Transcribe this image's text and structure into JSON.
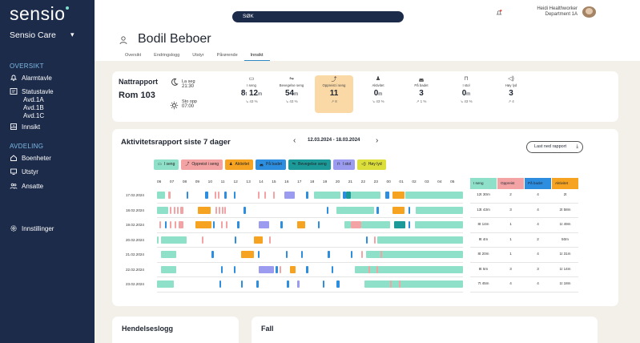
{
  "app": {
    "logo": "sensio",
    "org": "Sensio Care"
  },
  "sidebar": {
    "sections": [
      {
        "title": "OVERSIKT",
        "items": [
          {
            "label": "Alarmtavle",
            "icon": "alarm-bell-icon"
          },
          {
            "label": "Statustavle",
            "icon": "status-board-icon"
          },
          {
            "label": "Avd.1A",
            "sub": true
          },
          {
            "label": "Avd.1B",
            "sub": true
          },
          {
            "label": "Avd.1C",
            "sub": true
          },
          {
            "label": "Innsikt",
            "icon": "insight-icon"
          }
        ]
      },
      {
        "title": "AVDELING",
        "items": [
          {
            "label": "Boenheter",
            "icon": "housing-icon"
          },
          {
            "label": "Utstyr",
            "icon": "equipment-icon"
          },
          {
            "label": "Ansatte",
            "icon": "staff-icon"
          }
        ]
      }
    ],
    "settings": "Innstillinger"
  },
  "topbar": {
    "search_label": "SØK",
    "user_name": "Heidi Healthworker",
    "user_dept": "Department 1A"
  },
  "resident": {
    "name": "Bodil Beboer"
  },
  "tabs": [
    "Oversikt",
    "Endringslogg",
    "Utstyr",
    "Pårørende",
    "Innsikt"
  ],
  "active_tab": "Innsikt",
  "night_report": {
    "title": "Nattrapport",
    "room": "Rom 103",
    "lie_down_label": "La seg",
    "lie_down_time": "21:30",
    "got_up_label": "Sto opp",
    "got_up_time": "07:00",
    "metrics": [
      {
        "label": "I seng",
        "value": "8",
        "unit": "t",
        "value2": "12",
        "unit2": "m",
        "pct": "↘ 43 %",
        "icon": "bed-icon"
      },
      {
        "label": "Bevegelse seng",
        "value": "54",
        "unit": "m",
        "pct": "↘ 43 %",
        "icon": "bed-move-icon"
      },
      {
        "label": "Oppreist i seng",
        "value": "11",
        "unit": "",
        "pct": "↗ 8",
        "icon": "sit-up-icon",
        "highlight": true
      },
      {
        "label": "Aktivitet",
        "value": "0",
        "unit": "m",
        "pct": "↘ 43 %",
        "icon": "walk-icon"
      },
      {
        "label": "På badet",
        "value": "3",
        "unit": "",
        "pct": "↗ 1 %",
        "icon": "bath-icon"
      },
      {
        "label": "I stol",
        "value": "0",
        "unit": "m",
        "pct": "↘ 43 %",
        "icon": "chair-icon"
      },
      {
        "label": "Høy lyd",
        "value": "3",
        "unit": "",
        "pct": "↗ 4",
        "icon": "sound-icon"
      }
    ]
  },
  "activity": {
    "title": "Aktivitetsrapport siste 7 dager",
    "range": "12.03.2024 - 18.03.2024",
    "download_label": "Last ned rapport",
    "legend": [
      {
        "label": "I seng",
        "color": "#8fe0c8",
        "icon": "bed-icon"
      },
      {
        "label": "Oppreist i seng",
        "color": "#f3a3a3",
        "icon": "sit-up-icon"
      },
      {
        "label": "Aktivitet",
        "color": "#f5a321",
        "icon": "walk-icon"
      },
      {
        "label": "På badet",
        "color": "#2d8ee0",
        "icon": "bath-icon"
      },
      {
        "label": "Bevegelse seng",
        "color": "#1c9a9a",
        "icon": "bed-move-icon"
      },
      {
        "label": "I stol",
        "color": "#9b9cf0",
        "icon": "chair-icon"
      },
      {
        "label": "Høy lyd",
        "color": "#dcde3b",
        "icon": "sound-icon"
      }
    ],
    "hours": [
      "06",
      "07",
      "08",
      "09",
      "10",
      "11",
      "12",
      "13",
      "14",
      "15",
      "16",
      "17",
      "18",
      "19",
      "20",
      "21",
      "22",
      "23",
      "00",
      "01",
      "02",
      "03",
      "04",
      "05"
    ],
    "days": [
      {
        "date": "17.02.2024",
        "segments": [
          [
            0,
            0.6,
            "bed"
          ],
          [
            0.9,
            1.05,
            "up"
          ],
          [
            2.3,
            2.45,
            "bath"
          ],
          [
            3.8,
            4.0,
            "bath"
          ],
          [
            4.5,
            4.6,
            "up"
          ],
          [
            4.75,
            4.85,
            "up"
          ],
          [
            5.3,
            5.45,
            "bath"
          ],
          [
            6.0,
            6.15,
            "bath"
          ],
          [
            7.9,
            8.0,
            "up"
          ],
          [
            8.4,
            8.5,
            "up"
          ],
          [
            9.1,
            9.25,
            "up"
          ],
          [
            10.0,
            10.8,
            "chair"
          ],
          [
            11.7,
            11.85,
            "bath"
          ],
          [
            12.3,
            14.4,
            "bed"
          ],
          [
            14.6,
            14.8,
            "bath"
          ],
          [
            14.8,
            15.2,
            "bedmove"
          ],
          [
            15.2,
            17.5,
            "bed"
          ],
          [
            17.9,
            18.2,
            "bath"
          ],
          [
            18.5,
            19.4,
            "act"
          ],
          [
            19.5,
            24,
            "bed"
          ]
        ]
      },
      {
        "date": "18.02.2024",
        "segments": [
          [
            0,
            0.9,
            "bed"
          ],
          [
            1.0,
            1.05,
            "up"
          ],
          [
            1.3,
            1.35,
            "up"
          ],
          [
            1.55,
            1.6,
            "up"
          ],
          [
            1.85,
            2.05,
            "up"
          ],
          [
            3.2,
            4.2,
            "act"
          ],
          [
            4.6,
            4.65,
            "up"
          ],
          [
            4.85,
            4.9,
            "up"
          ],
          [
            5.1,
            5.15,
            "up"
          ],
          [
            5.3,
            5.35,
            "up"
          ],
          [
            6.8,
            6.95,
            "bath"
          ],
          [
            13.3,
            13.45,
            "bath"
          ],
          [
            14.1,
            17.0,
            "bed"
          ],
          [
            17.2,
            17.4,
            "bath"
          ],
          [
            18.5,
            19.4,
            "act"
          ],
          [
            19.7,
            19.85,
            "bath"
          ],
          [
            20.3,
            24,
            "bed"
          ]
        ]
      },
      {
        "date": "19.02.2024",
        "segments": [
          [
            0.2,
            0.3,
            "up"
          ],
          [
            0.6,
            0.75,
            "bath"
          ],
          [
            1.0,
            1.1,
            "up"
          ],
          [
            1.4,
            1.5,
            "up"
          ],
          [
            1.7,
            2.1,
            "up"
          ],
          [
            3.0,
            4.3,
            "act"
          ],
          [
            4.4,
            4.55,
            "bath"
          ],
          [
            5.0,
            5.1,
            "up"
          ],
          [
            5.4,
            5.5,
            "up"
          ],
          [
            6.3,
            6.5,
            "bath"
          ],
          [
            8.0,
            8.8,
            "chair"
          ],
          [
            9.7,
            9.85,
            "bath"
          ],
          [
            11.0,
            11.6,
            "act"
          ],
          [
            12.6,
            12.75,
            "bath"
          ],
          [
            14.7,
            15.2,
            "bed"
          ],
          [
            15.2,
            16.0,
            "up"
          ],
          [
            16.0,
            18.3,
            "bed"
          ],
          [
            18.6,
            19.5,
            "bedmove"
          ],
          [
            19.7,
            19.85,
            "bath"
          ],
          [
            20.2,
            24,
            "bed"
          ]
        ]
      },
      {
        "date": "20.02.2024",
        "segments": [
          [
            0,
            0.15,
            "bed"
          ],
          [
            0.3,
            2.3,
            "bed"
          ],
          [
            3.5,
            3.6,
            "up"
          ],
          [
            6.1,
            6.25,
            "bath"
          ],
          [
            7.6,
            8.3,
            "act"
          ],
          [
            8.8,
            8.9,
            "up"
          ],
          [
            16.4,
            16.55,
            "bath"
          ],
          [
            17.0,
            17.1,
            "up"
          ],
          [
            17.3,
            24,
            "bed"
          ]
        ]
      },
      {
        "date": "21.02.2024",
        "segments": [
          [
            0.3,
            1.5,
            "bed"
          ],
          [
            4.3,
            4.45,
            "bath"
          ],
          [
            6.6,
            7.6,
            "act"
          ],
          [
            7.9,
            8.05,
            "bath"
          ],
          [
            10.1,
            10.25,
            "bath"
          ],
          [
            11.3,
            11.45,
            "bath"
          ],
          [
            13.4,
            13.55,
            "bath"
          ],
          [
            15.2,
            15.35,
            "bath"
          ],
          [
            16.0,
            16.1,
            "up"
          ],
          [
            16.4,
            24,
            "bed"
          ],
          [
            17.5,
            17.55,
            "up"
          ]
        ]
      },
      {
        "date": "22.02.2024",
        "segments": [
          [
            0.3,
            1.5,
            "bed"
          ],
          [
            5.0,
            5.15,
            "bath"
          ],
          [
            6.0,
            6.15,
            "bath"
          ],
          [
            8.0,
            9.2,
            "chair"
          ],
          [
            9.3,
            9.5,
            "bath"
          ],
          [
            9.6,
            9.7,
            "up"
          ],
          [
            10.4,
            10.9,
            "act"
          ],
          [
            11.7,
            11.85,
            "bath"
          ],
          [
            13.7,
            13.85,
            "bath"
          ],
          [
            15.5,
            24,
            "bed"
          ],
          [
            16.6,
            16.65,
            "up"
          ],
          [
            17.2,
            17.3,
            "up"
          ]
        ]
      },
      {
        "date": "23.02.2024",
        "segments": [
          [
            0,
            1.3,
            "bed"
          ],
          [
            4.9,
            5.05,
            "bath"
          ],
          [
            6.6,
            6.75,
            "bath"
          ],
          [
            7.8,
            7.95,
            "bath"
          ],
          [
            10.2,
            10.35,
            "bath"
          ],
          [
            11.0,
            11.2,
            "chair"
          ],
          [
            13.0,
            13.15,
            "bath"
          ],
          [
            14.1,
            14.3,
            "bath"
          ],
          [
            16.3,
            24,
            "bed"
          ],
          [
            18.3,
            18.35,
            "up"
          ],
          [
            19.0,
            19.05,
            "up"
          ]
        ]
      }
    ],
    "summary": {
      "headers": [
        "I seng",
        "Oppreist",
        "På badet",
        "Aktivitet"
      ],
      "rows": [
        [
          "12t 30m",
          "2",
          "4",
          "2t"
        ],
        [
          "13t 43m",
          "3",
          "4",
          "2t 58m"
        ],
        [
          "8t 14m",
          "1",
          "4",
          "1t 49m"
        ],
        [
          "9t 4m",
          "1",
          "2",
          "50m"
        ],
        [
          "8t 20m",
          "1",
          "4",
          "1t 31m"
        ],
        [
          "8t 5m",
          "3",
          "3",
          "1t 14m"
        ],
        [
          "7t 45m",
          "4",
          "4",
          "1t 18m"
        ]
      ]
    }
  },
  "bottom": {
    "left_title": "Hendelseslogg",
    "right_title": "Fall"
  },
  "colors": {
    "sidebar": "#1c2b4a",
    "accent": "#2e88c4",
    "bed": "#8fe0c8",
    "up": "#f3a3a3",
    "act": "#f5a321",
    "bath": "#2d8ee0",
    "bedmove": "#1c9a9a",
    "chair": "#9b9cf0",
    "sound": "#dcde3b"
  }
}
